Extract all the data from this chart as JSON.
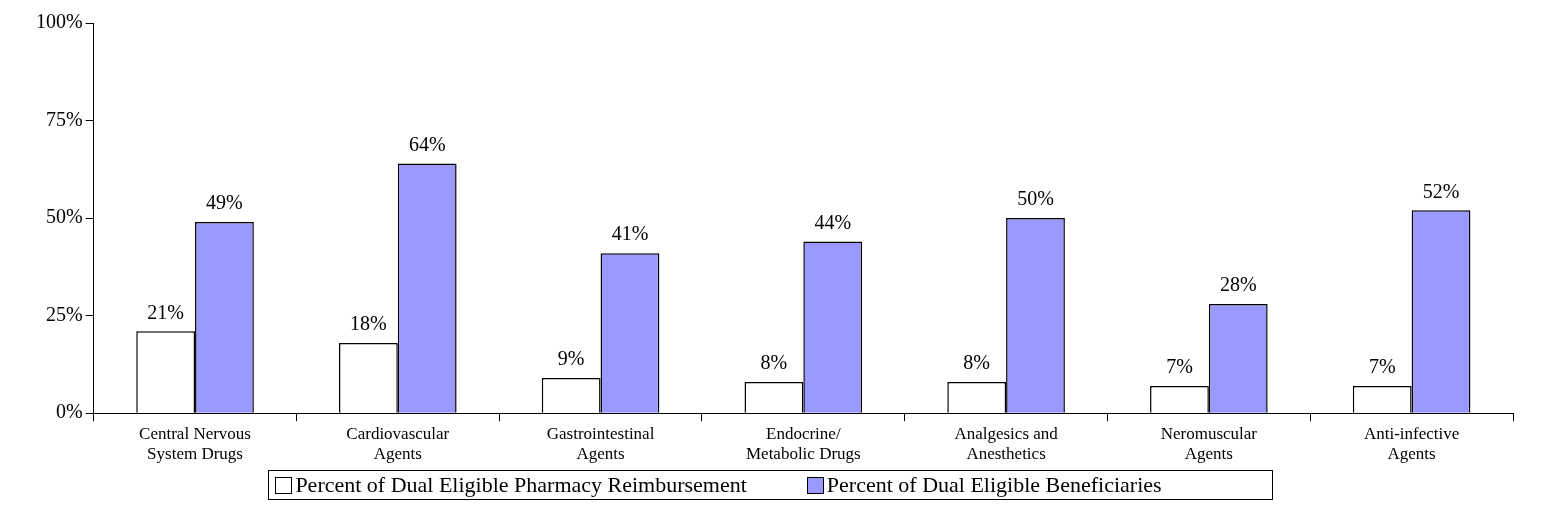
{
  "chart_data": {
    "type": "bar",
    "categories": [
      "Central Nervous\nSystem Drugs",
      "Cardiovascular\nAgents",
      "Gastrointestinal\nAgents",
      "Endocrine/\nMetabolic Drugs",
      "Analgesics and\nAnesthetics",
      "Neromuscular\nAgents",
      "Anti-infective\nAgents"
    ],
    "series": [
      {
        "name": "Percent of Dual Eligible Pharmacy Reimbursement",
        "color": "#ffffff",
        "values": [
          21,
          18,
          9,
          8,
          8,
          7,
          7
        ],
        "value_labels": [
          "21%",
          "18%",
          "9%",
          "8%",
          "8%",
          "7%",
          "7%"
        ]
      },
      {
        "name": "Percent of Dual Eligible Beneficiaries",
        "color": "#9999ff",
        "values": [
          49,
          64,
          41,
          44,
          50,
          28,
          52
        ],
        "value_labels": [
          "49%",
          "64%",
          "41%",
          "44%",
          "50%",
          "28%",
          "52%"
        ]
      }
    ],
    "ylim": [
      0,
      100
    ],
    "yticks": [
      {
        "value": 0,
        "label": "0%"
      },
      {
        "value": 25,
        "label": "25%"
      },
      {
        "value": 50,
        "label": "50%"
      },
      {
        "value": 75,
        "label": "75%"
      },
      {
        "value": 100,
        "label": "100%"
      }
    ],
    "grid": false,
    "legend": "bottom"
  }
}
